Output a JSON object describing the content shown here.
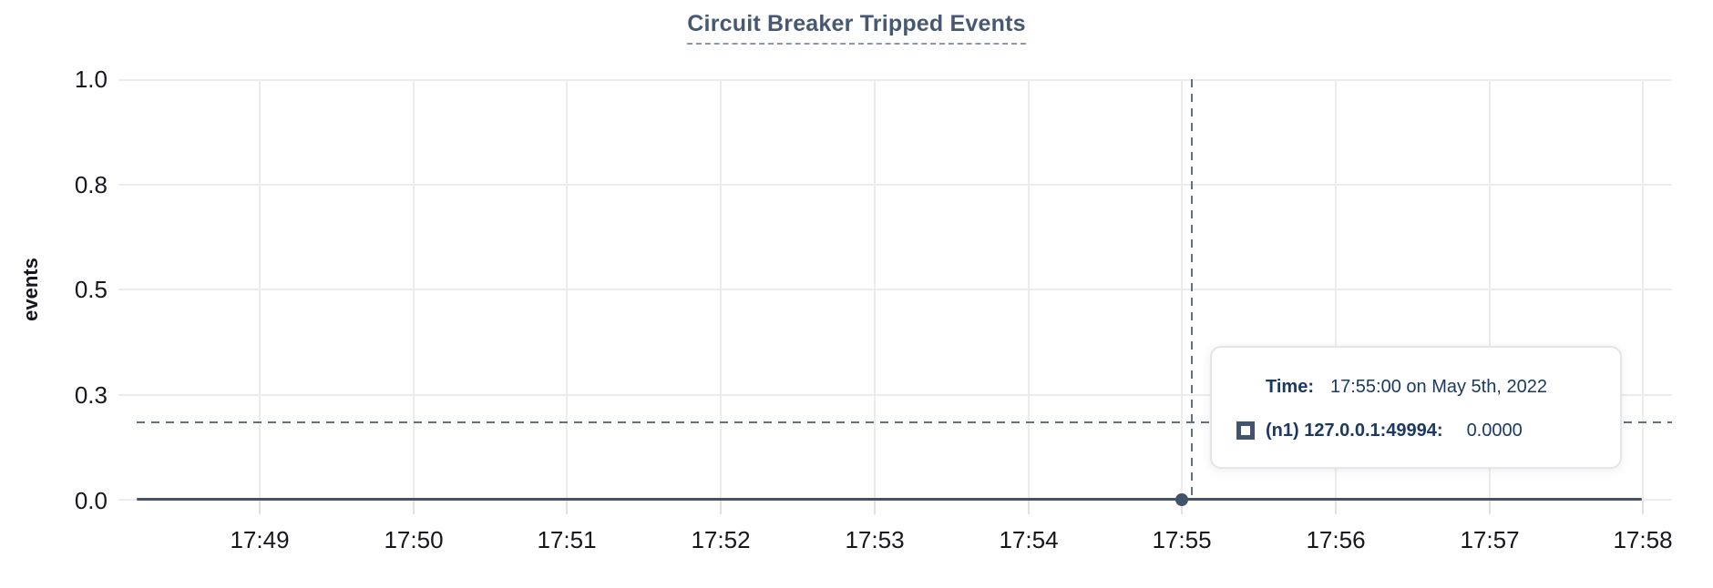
{
  "chart_data": {
    "type": "line",
    "title": "Circuit Breaker Tripped Events",
    "ylabel": "events",
    "xlabel": "",
    "ylim": [
      0.0,
      1.0
    ],
    "grid": true,
    "y_tick_labels": [
      "1.0",
      "0.8",
      "0.5",
      "0.3",
      "0.0"
    ],
    "x_tick_labels": [
      "17:49",
      "17:50",
      "17:51",
      "17:52",
      "17:53",
      "17:54",
      "17:55",
      "17:56",
      "17:57",
      "17:58"
    ],
    "series": [
      {
        "name": "(n1) 127.0.0.1:49994",
        "color": "#42526b",
        "x": [
          "17:49",
          "17:50",
          "17:51",
          "17:52",
          "17:53",
          "17:54",
          "17:55",
          "17:56",
          "17:57",
          "17:58"
        ],
        "values": [
          0,
          0,
          0,
          0,
          0,
          0,
          0,
          0,
          0,
          0
        ]
      }
    ],
    "hover_point": {
      "x": "17:55",
      "value": 0.0
    }
  },
  "tooltip": {
    "time_label": "Time:",
    "time_value": "17:55:00 on May 5th, 2022",
    "series_name": "(n1) 127.0.0.1:49994:",
    "series_value": "0.0000"
  },
  "colors": {
    "title": "#475872",
    "series": "#42526b",
    "crosshair": "#5f7183",
    "gridline": "#ececec",
    "tooltip_text": "#1b3962",
    "axis_text": "#16181d"
  }
}
